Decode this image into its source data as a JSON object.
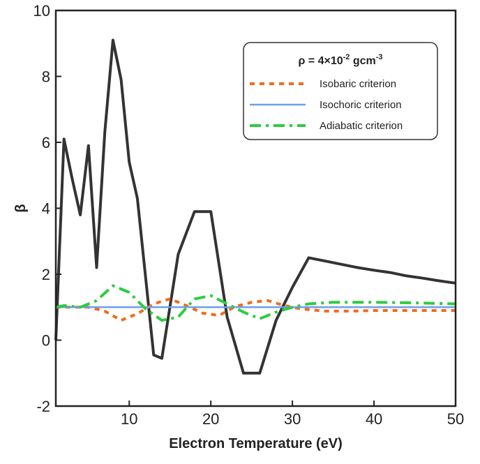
{
  "chart_data": {
    "type": "line",
    "xlabel": "Electron Temperature (eV)",
    "ylabel": "β",
    "xlim": [
      1,
      50
    ],
    "ylim": [
      -2,
      10
    ],
    "xticks": [
      10,
      20,
      30,
      40,
      50
    ],
    "yticks": [
      -2,
      0,
      2,
      4,
      6,
      8,
      10
    ],
    "grid": false,
    "legend": {
      "position": "top-right",
      "title_prefix": "ρ = 4×10",
      "title_exp1": "-2",
      "title_mid": " gcm",
      "title_exp2": "-3"
    },
    "series": [
      {
        "name": "",
        "color": "#333333",
        "dash": "solid",
        "x": [
          1,
          2,
          3,
          4,
          5,
          6,
          7,
          8,
          9,
          10,
          11,
          13,
          14,
          16,
          18,
          20,
          22,
          24,
          26,
          28,
          30,
          32,
          34,
          36,
          38,
          40,
          42,
          44,
          46,
          48,
          50
        ],
        "y": [
          0,
          6.1,
          4.9,
          3.8,
          5.9,
          2.2,
          6.3,
          9.1,
          7.9,
          5.4,
          4.3,
          -0.45,
          -0.55,
          2.6,
          3.9,
          3.9,
          0.7,
          -1.0,
          -1.0,
          0.6,
          1.6,
          2.5,
          2.4,
          2.3,
          2.2,
          2.12,
          2.05,
          1.95,
          1.88,
          1.8,
          1.73
        ]
      },
      {
        "name": "Isobaric criterion",
        "color": "#f26a1b",
        "dash": "dotted",
        "x": [
          1,
          2,
          3,
          5,
          7,
          9,
          11,
          13,
          15,
          17,
          19,
          21,
          23,
          25,
          27,
          29,
          31,
          34,
          37,
          40,
          45,
          50
        ],
        "y": [
          1.0,
          1.0,
          1.0,
          1.0,
          0.88,
          0.6,
          0.8,
          1.1,
          1.25,
          1.05,
          0.82,
          0.75,
          1.02,
          1.15,
          1.2,
          1.05,
          0.95,
          0.88,
          0.88,
          0.9,
          0.9,
          0.9
        ]
      },
      {
        "name": "Isochoric criterion",
        "color": "#6d9eeb",
        "dash": "solid",
        "x": [
          1,
          50
        ],
        "y": [
          1.0,
          1.0
        ]
      },
      {
        "name": "Adiabatic criterion",
        "color": "#2ecc40",
        "dash": "dashdot",
        "x": [
          1,
          2,
          4,
          6,
          8,
          10,
          12,
          14,
          16,
          18,
          20,
          22,
          24,
          26,
          28,
          30,
          32,
          35,
          40,
          45,
          50
        ],
        "y": [
          1.0,
          1.05,
          1.0,
          1.2,
          1.65,
          1.45,
          0.95,
          0.6,
          0.7,
          1.25,
          1.35,
          1.1,
          0.85,
          0.65,
          0.85,
          1.0,
          1.1,
          1.15,
          1.15,
          1.13,
          1.1
        ]
      }
    ]
  }
}
